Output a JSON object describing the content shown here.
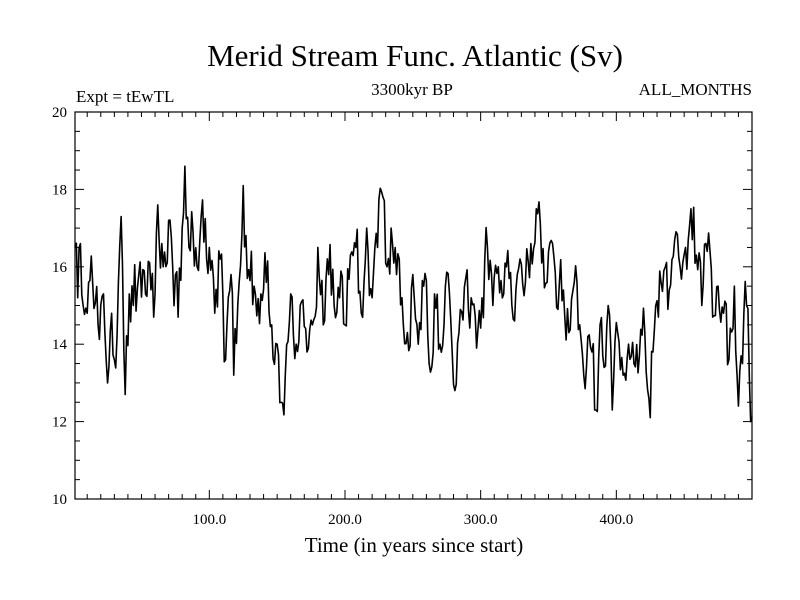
{
  "chart_data": {
    "type": "line",
    "title": "Merid Stream Func. Atlantic (Sv)",
    "subtitle_left": "Expt = tEwTL",
    "subtitle_center": "3300kyr BP",
    "subtitle_right": "ALL_MONTHS",
    "xlabel": "Time (in years since start)",
    "ylabel": "",
    "xlim": [
      1,
      500
    ],
    "ylim": [
      10,
      20
    ],
    "xticks": [
      100,
      200,
      300,
      400
    ],
    "xtick_labels": [
      "100.0",
      "200.0",
      "300.0",
      "400.0"
    ],
    "yticks": [
      10,
      12,
      14,
      16,
      18,
      20
    ],
    "ytick_labels": [
      "10",
      "12",
      "14",
      "16",
      "18",
      "20"
    ],
    "grid": false,
    "series": [
      {
        "name": "Merid Stream Func. Atlantic",
        "color": "#000000",
        "x_start": 1,
        "x_step": 1,
        "anchors": [
          [
            1,
            16.5
          ],
          [
            3,
            15.2
          ],
          [
            5,
            16.6
          ],
          [
            7,
            15.0
          ],
          [
            10,
            14.8
          ],
          [
            14,
            15.6
          ],
          [
            18,
            14.5
          ],
          [
            22,
            15.3
          ],
          [
            25,
            13.0
          ],
          [
            28,
            14.8
          ],
          [
            30,
            13.6
          ],
          [
            33,
            15.6
          ],
          [
            35,
            17.3
          ],
          [
            38,
            12.7
          ],
          [
            41,
            15.3
          ],
          [
            44,
            15.0
          ],
          [
            48,
            15.8
          ],
          [
            52,
            15.9
          ],
          [
            56,
            16.1
          ],
          [
            60,
            15.3
          ],
          [
            62,
            17.6
          ],
          [
            66,
            16.0
          ],
          [
            70,
            17.2
          ],
          [
            73,
            16.0
          ],
          [
            77,
            14.7
          ],
          [
            80,
            17.0
          ],
          [
            82,
            18.6
          ],
          [
            85,
            16.5
          ],
          [
            88,
            16.9
          ],
          [
            91,
            16.0
          ],
          [
            94,
            17.3
          ],
          [
            98,
            16.2
          ],
          [
            100,
            16.5
          ],
          [
            104,
            14.8
          ],
          [
            108,
            16.2
          ],
          [
            112,
            13.6
          ],
          [
            116,
            15.8
          ],
          [
            118,
            13.2
          ],
          [
            122,
            15.6
          ],
          [
            125,
            18.1
          ],
          [
            128,
            15.7
          ],
          [
            133,
            15.5
          ],
          [
            138,
            15.3
          ],
          [
            142,
            15.6
          ],
          [
            146,
            14.5
          ],
          [
            150,
            14.0
          ],
          [
            153,
            12.5
          ],
          [
            156,
            13.2
          ],
          [
            160,
            15.3
          ],
          [
            164,
            14.0
          ],
          [
            168,
            15.1
          ],
          [
            172,
            13.8
          ],
          [
            176,
            14.5
          ],
          [
            180,
            16.5
          ],
          [
            184,
            14.5
          ],
          [
            188,
            15.8
          ],
          [
            192,
            15.0
          ],
          [
            196,
            15.2
          ],
          [
            200,
            14.5
          ],
          [
            204,
            16.3
          ],
          [
            208,
            16.5
          ],
          [
            212,
            14.8
          ],
          [
            216,
            17.0
          ],
          [
            220,
            15.2
          ],
          [
            224,
            16.5
          ],
          [
            228,
            17.8
          ],
          [
            231,
            16.0
          ],
          [
            234,
            17.0
          ],
          [
            238,
            15.8
          ],
          [
            242,
            15.2
          ],
          [
            246,
            14.3
          ],
          [
            250,
            15.8
          ],
          [
            254,
            14.0
          ],
          [
            258,
            15.5
          ],
          [
            262,
            13.5
          ],
          [
            266,
            15.3
          ],
          [
            270,
            14.0
          ],
          [
            274,
            15.5
          ],
          [
            278,
            14.6
          ],
          [
            281,
            12.8
          ],
          [
            285,
            14.9
          ],
          [
            289,
            15.7
          ],
          [
            293,
            15.2
          ],
          [
            297,
            13.9
          ],
          [
            301,
            15.2
          ],
          [
            305,
            16.5
          ],
          [
            309,
            15.0
          ],
          [
            313,
            16.0
          ],
          [
            317,
            15.3
          ],
          [
            321,
            15.7
          ],
          [
            325,
            14.6
          ],
          [
            329,
            16.2
          ],
          [
            333,
            15.6
          ],
          [
            337,
            16.6
          ],
          [
            341,
            17.5
          ],
          [
            345,
            16.1
          ],
          [
            349,
            15.6
          ],
          [
            353,
            16.6
          ],
          [
            357,
            14.9
          ],
          [
            361,
            15.4
          ],
          [
            365,
            14.3
          ],
          [
            369,
            15.6
          ],
          [
            373,
            14.5
          ],
          [
            376,
            13.2
          ],
          [
            379,
            14.2
          ],
          [
            382,
            13.8
          ],
          [
            385,
            12.3
          ],
          [
            388,
            14.5
          ],
          [
            391,
            13.4
          ],
          [
            394,
            15.0
          ],
          [
            397,
            12.3
          ],
          [
            401,
            14.3
          ],
          [
            405,
            13.2
          ],
          [
            409,
            14.0
          ],
          [
            413,
            13.5
          ],
          [
            417,
            13.7
          ],
          [
            421,
            14.3
          ],
          [
            424,
            12.6
          ],
          [
            427,
            13.8
          ],
          [
            431,
            14.7
          ],
          [
            435,
            15.9
          ],
          [
            439,
            15.4
          ],
          [
            443,
            16.7
          ],
          [
            447,
            16.0
          ],
          [
            451,
            16.5
          ],
          [
            455,
            17.5
          ],
          [
            459,
            16.3
          ],
          [
            463,
            15.0
          ],
          [
            467,
            16.4
          ],
          [
            471,
            14.7
          ],
          [
            475,
            15.5
          ],
          [
            479,
            14.8
          ],
          [
            483,
            13.6
          ],
          [
            487,
            15.5
          ],
          [
            490,
            12.4
          ],
          [
            493,
            13.5
          ],
          [
            496,
            15.0
          ],
          [
            498,
            13.2
          ],
          [
            499,
            12.0
          ]
        ],
        "noise_amplitude": 0.85
      }
    ]
  }
}
